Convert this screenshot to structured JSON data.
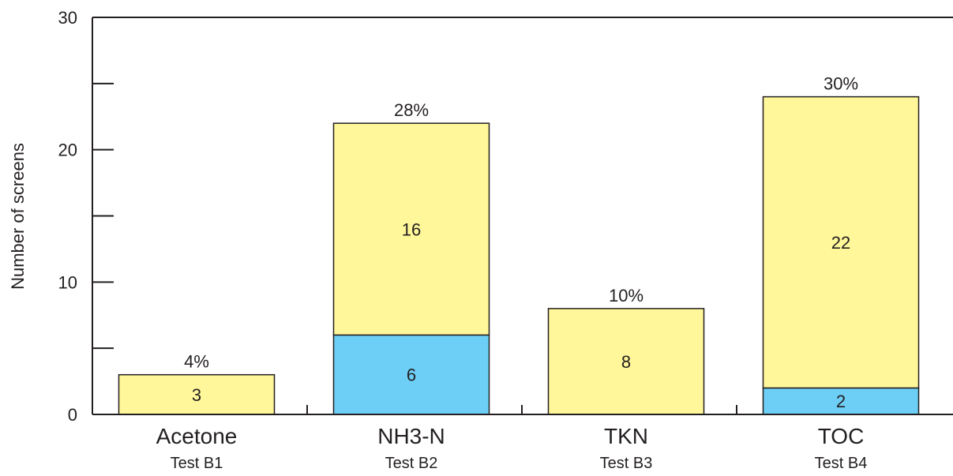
{
  "chart_data": {
    "type": "bar",
    "stacked": true,
    "title": "",
    "xlabel": "",
    "ylabel": "Number of screens",
    "ylim": [
      0,
      30
    ],
    "y_ticks": [
      0,
      10,
      20,
      30
    ],
    "grid": false,
    "categories": [
      "Acetone",
      "NH3-N",
      "TKN",
      "TOC"
    ],
    "category_sublabels": [
      "Test B1",
      "Test B2",
      "Test B3",
      "Test B4"
    ],
    "series": [
      {
        "color": "#6dcff6",
        "values": [
          0,
          6,
          0,
          2
        ]
      },
      {
        "color": "#fff799",
        "values": [
          3,
          16,
          8,
          22
        ]
      }
    ],
    "percent_labels": [
      "4%",
      "28%",
      "10%",
      "30%"
    ]
  }
}
